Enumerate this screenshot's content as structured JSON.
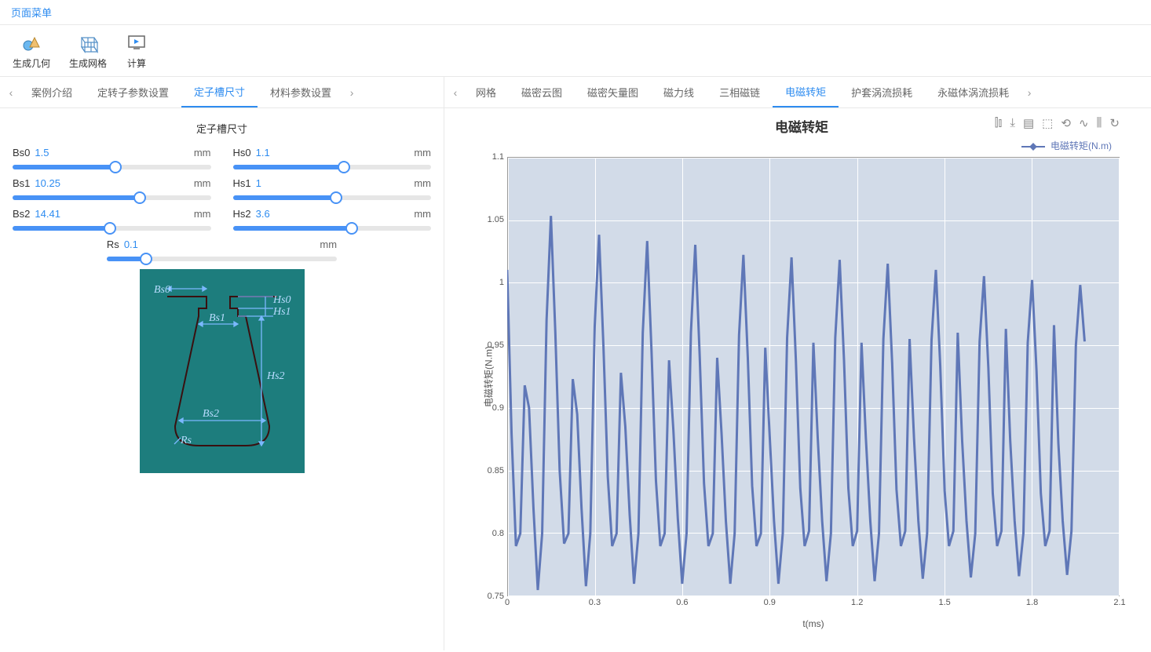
{
  "menu_label": "页面菜单",
  "toolbar": [
    {
      "label": "生成几何",
      "icon": "geom"
    },
    {
      "label": "生成网格",
      "icon": "mesh"
    },
    {
      "label": "计算",
      "icon": "calc"
    }
  ],
  "left_tabs": [
    "案例介绍",
    "定转子参数设置",
    "定子槽尺寸",
    "材料参数设置"
  ],
  "left_active_tab": 2,
  "right_tabs": [
    "网格",
    "磁密云图",
    "磁密矢量图",
    "磁力线",
    "三相磁链",
    "电磁转矩",
    "护套涡流损耗",
    "永磁体涡流损耗"
  ],
  "right_active_tab": 5,
  "panel_title": "定子槽尺寸",
  "sliders": [
    {
      "param": "Bs0",
      "value": "1.5",
      "unit": "mm",
      "pct": 52
    },
    {
      "param": "Hs0",
      "value": "1.1",
      "unit": "mm",
      "pct": 56
    },
    {
      "param": "Bs1",
      "value": "10.25",
      "unit": "mm",
      "pct": 64
    },
    {
      "param": "Hs1",
      "value": "1",
      "unit": "mm",
      "pct": 52
    },
    {
      "param": "Bs2",
      "value": "14.41",
      "unit": "mm",
      "pct": 49
    },
    {
      "param": "Hs2",
      "value": "3.6",
      "unit": "mm",
      "pct": 60
    },
    {
      "param": "Rs",
      "value": "0.1",
      "unit": "mm",
      "pct": 17,
      "full": true
    }
  ],
  "diagram": {
    "background": "#1d7d7d",
    "labels": [
      "Bs0",
      "Hs0",
      "Hs1",
      "Bs1",
      "Hs2",
      "Bs2",
      "Rs"
    ]
  },
  "chart": {
    "title": "电磁转矩",
    "legend": "电磁转矩(N.m)",
    "ylabel": "电磁转矩(N.m)",
    "xlabel": "t(ms)",
    "line_color": "#5f77b7",
    "plot_bg": "#d2dbe8",
    "grid_color": "#ffffff",
    "xlim": [
      0,
      2.1
    ],
    "ylim": [
      0.75,
      1.1
    ],
    "yticks": [
      0.75,
      0.8,
      0.85,
      0.9,
      0.95,
      1,
      1.05,
      1.1
    ],
    "xticks": [
      0,
      0.3,
      0.6,
      0.9,
      1.2,
      1.5,
      1.8,
      2.1
    ],
    "data": [
      [
        0.0,
        1.01
      ],
      [
        0.015,
        0.88
      ],
      [
        0.03,
        0.79
      ],
      [
        0.045,
        0.8
      ],
      [
        0.06,
        0.918
      ],
      [
        0.075,
        0.9
      ],
      [
        0.09,
        0.82
      ],
      [
        0.105,
        0.755
      ],
      [
        0.12,
        0.8
      ],
      [
        0.135,
        0.97
      ],
      [
        0.15,
        1.053
      ],
      [
        0.165,
        0.96
      ],
      [
        0.18,
        0.85
      ],
      [
        0.195,
        0.792
      ],
      [
        0.21,
        0.8
      ],
      [
        0.225,
        0.923
      ],
      [
        0.24,
        0.895
      ],
      [
        0.255,
        0.82
      ],
      [
        0.27,
        0.758
      ],
      [
        0.285,
        0.8
      ],
      [
        0.3,
        0.965
      ],
      [
        0.315,
        1.038
      ],
      [
        0.33,
        0.95
      ],
      [
        0.345,
        0.845
      ],
      [
        0.36,
        0.79
      ],
      [
        0.375,
        0.8
      ],
      [
        0.39,
        0.928
      ],
      [
        0.405,
        0.885
      ],
      [
        0.42,
        0.815
      ],
      [
        0.435,
        0.76
      ],
      [
        0.45,
        0.8
      ],
      [
        0.465,
        0.96
      ],
      [
        0.48,
        1.033
      ],
      [
        0.495,
        0.945
      ],
      [
        0.51,
        0.842
      ],
      [
        0.525,
        0.79
      ],
      [
        0.54,
        0.8
      ],
      [
        0.555,
        0.938
      ],
      [
        0.57,
        0.882
      ],
      [
        0.585,
        0.812
      ],
      [
        0.6,
        0.76
      ],
      [
        0.615,
        0.8
      ],
      [
        0.63,
        0.96
      ],
      [
        0.645,
        1.03
      ],
      [
        0.66,
        0.942
      ],
      [
        0.675,
        0.84
      ],
      [
        0.69,
        0.79
      ],
      [
        0.705,
        0.8
      ],
      [
        0.72,
        0.94
      ],
      [
        0.735,
        0.88
      ],
      [
        0.75,
        0.81
      ],
      [
        0.765,
        0.76
      ],
      [
        0.78,
        0.8
      ],
      [
        0.795,
        0.958
      ],
      [
        0.81,
        1.022
      ],
      [
        0.825,
        0.94
      ],
      [
        0.84,
        0.838
      ],
      [
        0.855,
        0.79
      ],
      [
        0.87,
        0.8
      ],
      [
        0.885,
        0.948
      ],
      [
        0.9,
        0.878
      ],
      [
        0.915,
        0.81
      ],
      [
        0.93,
        0.76
      ],
      [
        0.945,
        0.8
      ],
      [
        0.96,
        0.956
      ],
      [
        0.975,
        1.02
      ],
      [
        0.99,
        0.938
      ],
      [
        1.005,
        0.836
      ],
      [
        1.02,
        0.79
      ],
      [
        1.035,
        0.802
      ],
      [
        1.05,
        0.952
      ],
      [
        1.065,
        0.876
      ],
      [
        1.08,
        0.81
      ],
      [
        1.095,
        0.762
      ],
      [
        1.11,
        0.8
      ],
      [
        1.125,
        0.956
      ],
      [
        1.14,
        1.018
      ],
      [
        1.155,
        0.938
      ],
      [
        1.17,
        0.836
      ],
      [
        1.185,
        0.79
      ],
      [
        1.2,
        0.802
      ],
      [
        1.215,
        0.952
      ],
      [
        1.23,
        0.876
      ],
      [
        1.245,
        0.81
      ],
      [
        1.26,
        0.762
      ],
      [
        1.275,
        0.8
      ],
      [
        1.29,
        0.955
      ],
      [
        1.305,
        1.015
      ],
      [
        1.32,
        0.936
      ],
      [
        1.335,
        0.835
      ],
      [
        1.35,
        0.79
      ],
      [
        1.365,
        0.802
      ],
      [
        1.38,
        0.955
      ],
      [
        1.395,
        0.876
      ],
      [
        1.41,
        0.81
      ],
      [
        1.425,
        0.764
      ],
      [
        1.44,
        0.8
      ],
      [
        1.455,
        0.954
      ],
      [
        1.47,
        1.01
      ],
      [
        1.485,
        0.934
      ],
      [
        1.5,
        0.834
      ],
      [
        1.515,
        0.79
      ],
      [
        1.53,
        0.802
      ],
      [
        1.545,
        0.96
      ],
      [
        1.56,
        0.874
      ],
      [
        1.575,
        0.81
      ],
      [
        1.59,
        0.765
      ],
      [
        1.605,
        0.8
      ],
      [
        1.62,
        0.953
      ],
      [
        1.635,
        1.005
      ],
      [
        1.65,
        0.932
      ],
      [
        1.665,
        0.832
      ],
      [
        1.68,
        0.79
      ],
      [
        1.695,
        0.802
      ],
      [
        1.71,
        0.963
      ],
      [
        1.725,
        0.874
      ],
      [
        1.74,
        0.81
      ],
      [
        1.755,
        0.766
      ],
      [
        1.77,
        0.8
      ],
      [
        1.785,
        0.952
      ],
      [
        1.8,
        1.002
      ],
      [
        1.815,
        0.93
      ],
      [
        1.83,
        0.832
      ],
      [
        1.845,
        0.79
      ],
      [
        1.86,
        0.802
      ],
      [
        1.875,
        0.966
      ],
      [
        1.89,
        0.872
      ],
      [
        1.905,
        0.81
      ],
      [
        1.92,
        0.767
      ],
      [
        1.935,
        0.802
      ],
      [
        1.95,
        0.95
      ],
      [
        1.965,
        0.998
      ],
      [
        1.98,
        0.953
      ]
    ]
  }
}
